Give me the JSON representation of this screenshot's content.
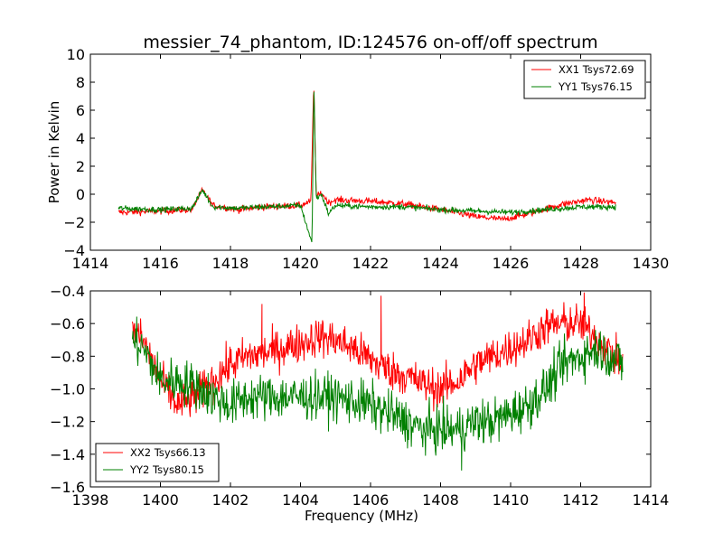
{
  "figure": {
    "title": "messier_74_phantom, ID:124576 on-off/off spectrum"
  },
  "chart_data": [
    {
      "type": "line",
      "panel": "top",
      "title": "messier_74_phantom, ID:124576 on-off/off spectrum",
      "xlabel": "",
      "ylabel": "Power in Kelvin",
      "xlim": [
        1414,
        1430
      ],
      "ylim": [
        -4,
        10
      ],
      "xticks": [
        1414,
        1416,
        1418,
        1420,
        1422,
        1424,
        1426,
        1428,
        1430
      ],
      "yticks": [
        -4,
        -2,
        0,
        2,
        4,
        6,
        8,
        10
      ],
      "x_range": [
        1414.8,
        1429.0
      ],
      "grid": false,
      "legend_position": "top-right",
      "series": [
        {
          "name": "XX1 Tsys72.69",
          "color": "#ff0000",
          "noise": 0.12,
          "profile": [
            [
              1414.8,
              -1.3
            ],
            [
              1416.0,
              -1.2
            ],
            [
              1416.9,
              -1.1
            ],
            [
              1417.2,
              0.3
            ],
            [
              1417.5,
              -0.8
            ],
            [
              1418.2,
              -1.1
            ],
            [
              1419.0,
              -0.9
            ],
            [
              1420.0,
              -0.8
            ],
            [
              1420.3,
              -0.5
            ],
            [
              1420.38,
              8.1
            ],
            [
              1420.45,
              -0.2
            ],
            [
              1420.6,
              0.1
            ],
            [
              1420.8,
              -0.6
            ],
            [
              1421.0,
              -0.4
            ],
            [
              1422.0,
              -0.5
            ],
            [
              1423.0,
              -0.7
            ],
            [
              1424.0,
              -1.1
            ],
            [
              1425.0,
              -1.6
            ],
            [
              1425.8,
              -1.8
            ],
            [
              1426.5,
              -1.4
            ],
            [
              1427.5,
              -0.7
            ],
            [
              1428.2,
              -0.4
            ],
            [
              1429.0,
              -0.6
            ]
          ]
        },
        {
          "name": "YY1 Tsys76.15",
          "color": "#008000",
          "noise": 0.1,
          "profile": [
            [
              1414.8,
              -1.0
            ],
            [
              1416.0,
              -1.1
            ],
            [
              1416.9,
              -1.0
            ],
            [
              1417.2,
              0.3
            ],
            [
              1417.5,
              -0.9
            ],
            [
              1418.2,
              -1.0
            ],
            [
              1419.0,
              -0.9
            ],
            [
              1420.0,
              -0.8
            ],
            [
              1420.33,
              -3.5
            ],
            [
              1420.38,
              8.1
            ],
            [
              1420.45,
              -0.3
            ],
            [
              1420.6,
              0.0
            ],
            [
              1420.8,
              -1.4
            ],
            [
              1421.0,
              -0.8
            ],
            [
              1422.0,
              -0.9
            ],
            [
              1423.0,
              -0.9
            ],
            [
              1424.0,
              -1.1
            ],
            [
              1425.0,
              -1.2
            ],
            [
              1426.0,
              -1.3
            ],
            [
              1427.0,
              -1.1
            ],
            [
              1428.0,
              -0.9
            ],
            [
              1429.0,
              -0.9
            ]
          ]
        }
      ]
    },
    {
      "type": "line",
      "panel": "bottom",
      "title": "",
      "xlabel": "Frequency (MHz)",
      "ylabel": "",
      "xlim": [
        1398,
        1414
      ],
      "ylim": [
        -1.6,
        -0.4
      ],
      "xticks": [
        1398,
        1400,
        1402,
        1404,
        1406,
        1408,
        1410,
        1412,
        1414
      ],
      "yticks": [
        -1.6,
        -1.4,
        -1.2,
        -1.0,
        -0.8,
        -0.6,
        -0.4
      ],
      "x_range": [
        1399.2,
        1413.2
      ],
      "grid": false,
      "legend_position": "bottom-left",
      "series": [
        {
          "name": "XX2 Tsys66.13",
          "color": "#ff0000",
          "noise": 0.06,
          "profile": [
            [
              1399.2,
              -0.65
            ],
            [
              1399.5,
              -0.7
            ],
            [
              1400.0,
              -0.95
            ],
            [
              1400.5,
              -1.1
            ],
            [
              1401.0,
              -1.05
            ],
            [
              1401.5,
              -0.95
            ],
            [
              1402.0,
              -0.85
            ],
            [
              1402.5,
              -0.8
            ],
            [
              1403.0,
              -0.78
            ],
            [
              1404.0,
              -0.72
            ],
            [
              1404.5,
              -0.68
            ],
            [
              1405.0,
              -0.7
            ],
            [
              1405.5,
              -0.75
            ],
            [
              1406.0,
              -0.82
            ],
            [
              1406.5,
              -0.88
            ],
            [
              1407.0,
              -0.92
            ],
            [
              1407.5,
              -0.97
            ],
            [
              1408.0,
              -1.0
            ],
            [
              1408.5,
              -0.95
            ],
            [
              1409.0,
              -0.85
            ],
            [
              1409.5,
              -0.8
            ],
            [
              1410.0,
              -0.75
            ],
            [
              1410.5,
              -0.7
            ],
            [
              1411.0,
              -0.62
            ],
            [
              1411.5,
              -0.6
            ],
            [
              1412.0,
              -0.6
            ],
            [
              1412.5,
              -0.7
            ],
            [
              1413.2,
              -0.85
            ]
          ],
          "spikes": [
            [
              1406.3,
              -0.43
            ],
            [
              1402.9,
              -0.48
            ],
            [
              1412.1,
              -0.41
            ]
          ]
        },
        {
          "name": "YY2 Tsys80.15",
          "color": "#008000",
          "noise": 0.07,
          "profile": [
            [
              1399.2,
              -0.7
            ],
            [
              1399.5,
              -0.75
            ],
            [
              1400.0,
              -0.95
            ],
            [
              1400.5,
              -0.95
            ],
            [
              1401.0,
              -0.98
            ],
            [
              1401.5,
              -1.05
            ],
            [
              1402.0,
              -1.1
            ],
            [
              1402.5,
              -1.05
            ],
            [
              1403.0,
              -1.05
            ],
            [
              1404.0,
              -1.05
            ],
            [
              1405.0,
              -1.05
            ],
            [
              1406.0,
              -1.1
            ],
            [
              1406.5,
              -1.15
            ],
            [
              1407.0,
              -1.2
            ],
            [
              1407.5,
              -1.25
            ],
            [
              1408.0,
              -1.25
            ],
            [
              1408.5,
              -1.25
            ],
            [
              1409.0,
              -1.2
            ],
            [
              1409.5,
              -1.2
            ],
            [
              1410.0,
              -1.15
            ],
            [
              1410.5,
              -1.1
            ],
            [
              1411.0,
              -1.0
            ],
            [
              1411.5,
              -0.85
            ],
            [
              1412.0,
              -0.8
            ],
            [
              1412.5,
              -0.75
            ],
            [
              1413.2,
              -0.85
            ]
          ],
          "spikes": [
            [
              1408.6,
              -1.5
            ]
          ]
        }
      ]
    }
  ]
}
